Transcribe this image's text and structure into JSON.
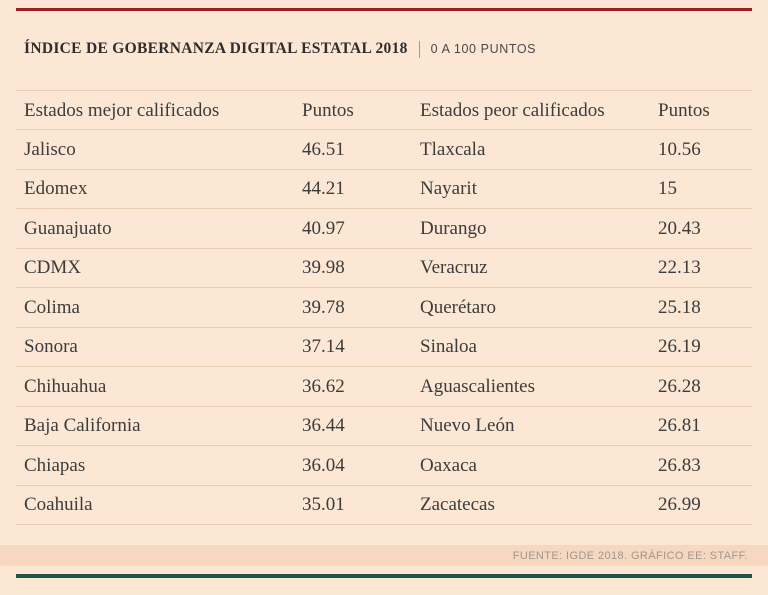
{
  "header": {
    "title": "ÍNDICE DE GOBERNANZA DIGITAL ESTATAL 2018",
    "subtitle": "0 A 100 PUNTOS"
  },
  "table": {
    "left": {
      "header_state": "Estados mejor calificados",
      "header_points": "Puntos",
      "rows": [
        {
          "state": "Jalisco",
          "points": "46.51"
        },
        {
          "state": "Edomex",
          "points": "44.21"
        },
        {
          "state": "Guanajuato",
          "points": "40.97"
        },
        {
          "state": "CDMX",
          "points": "39.98"
        },
        {
          "state": "Colima",
          "points": "39.78"
        },
        {
          "state": "Sonora",
          "points": "37.14"
        },
        {
          "state": "Chihuahua",
          "points": "36.62"
        },
        {
          "state": "Baja California",
          "points": "36.44"
        },
        {
          "state": "Chiapas",
          "points": "36.04"
        },
        {
          "state": "Coahuila",
          "points": "35.01"
        }
      ]
    },
    "right": {
      "header_state": "Estados peor calificados",
      "header_points": "Puntos",
      "rows": [
        {
          "state": "Tlaxcala",
          "points": "10.56"
        },
        {
          "state": "Nayarit",
          "points": "15"
        },
        {
          "state": "Durango",
          "points": "20.43"
        },
        {
          "state": "Veracruz",
          "points": "22.13"
        },
        {
          "state": "Querétaro",
          "points": "25.18"
        },
        {
          "state": "Sinaloa",
          "points": "26.19"
        },
        {
          "state": "Aguascalientes",
          "points": "26.28"
        },
        {
          "state": "Nuevo León",
          "points": "26.81"
        },
        {
          "state": "Oaxaca",
          "points": "26.83"
        },
        {
          "state": "Zacatecas",
          "points": "26.99"
        }
      ]
    }
  },
  "footer": {
    "source": "FUENTE: IGDE 2018. GRÁFICO EE: STAFF."
  },
  "colors": {
    "background": "#fce6d4",
    "top_bar": "#a01e20",
    "bottom_bar": "#20564a",
    "row_line": "#e9cdb3",
    "footer_band": "#f6d7bf",
    "text": "#3c3c3c"
  },
  "chart_data": {
    "type": "table",
    "title": "ÍNDICE DE GOBERNANZA DIGITAL ESTATAL 2018",
    "subtitle": "0 A 100 PUNTOS",
    "scale_range": [
      0,
      100
    ],
    "tables": [
      {
        "label": "Estados mejor calificados",
        "value_label": "Puntos",
        "states": [
          "Jalisco",
          "Edomex",
          "Guanajuato",
          "CDMX",
          "Colima",
          "Sonora",
          "Chihuahua",
          "Baja California",
          "Chiapas",
          "Coahuila"
        ],
        "values": [
          46.51,
          44.21,
          40.97,
          39.98,
          39.78,
          37.14,
          36.62,
          36.44,
          36.04,
          35.01
        ]
      },
      {
        "label": "Estados peor calificados",
        "value_label": "Puntos",
        "states": [
          "Tlaxcala",
          "Nayarit",
          "Durango",
          "Veracruz",
          "Querétaro",
          "Sinaloa",
          "Aguascalientes",
          "Nuevo León",
          "Oaxaca",
          "Zacatecas"
        ],
        "values": [
          10.56,
          15,
          20.43,
          22.13,
          25.18,
          26.19,
          26.28,
          26.81,
          26.83,
          26.99
        ]
      }
    ],
    "source": "FUENTE: IGDE 2018. GRÁFICO EE: STAFF."
  }
}
